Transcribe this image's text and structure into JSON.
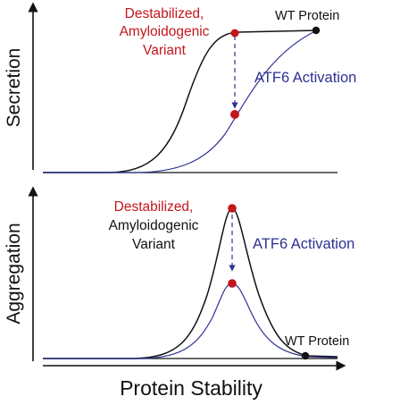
{
  "colors": {
    "red": "#c4161c",
    "blue": "#2e3192",
    "black": "#111111"
  },
  "axes": {
    "x_label": "Protein Stability",
    "top_y_label": "Secretion",
    "bottom_y_label": "Aggregation"
  },
  "top_panel": {
    "variant_label_lines": [
      "Destabilized,",
      "Amyloidogenic",
      "Variant"
    ],
    "wt_label": "WT Protein",
    "atf6_label": "ATF6 Activation"
  },
  "bottom_panel": {
    "variant_label_lines": [
      "Destabilized,",
      "Amyloidogenic",
      "Variant"
    ],
    "wt_label": "WT Protein",
    "atf6_label": "ATF6 Activation"
  }
}
